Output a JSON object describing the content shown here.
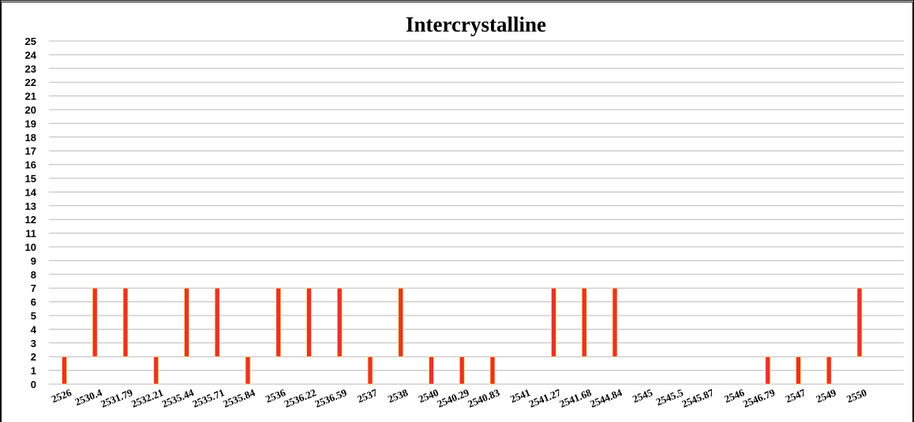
{
  "chart_data": {
    "type": "bar",
    "title": "Intercrystalline",
    "xlabel": "",
    "ylabel": "",
    "ylim": [
      0,
      25
    ],
    "yticks": [
      0,
      1,
      2,
      3,
      4,
      5,
      6,
      7,
      8,
      9,
      10,
      11,
      12,
      13,
      14,
      15,
      16,
      17,
      18,
      19,
      20,
      21,
      22,
      23,
      24,
      25
    ],
    "grid": true,
    "legend": "none",
    "bar_color": "#e8322a",
    "bar_edge_color": "#ffe27a",
    "categories": [
      "2526",
      "2530.4",
      "2531.79",
      "2532.21",
      "2535.44",
      "2535.71",
      "2535.84",
      "2536",
      "2536.22",
      "2536.59",
      "2537",
      "2538",
      "2540",
      "2540.29",
      "2540.83",
      "2541",
      "2541.27",
      "2541.68",
      "2544.84",
      "2545",
      "2545.5",
      "2545.87",
      "2546",
      "2546.79",
      "2547",
      "2549",
      "2550"
    ],
    "series": [
      {
        "bar_bottom": [
          0,
          2,
          2,
          0,
          2,
          2,
          0,
          2,
          2,
          2,
          0,
          2,
          0,
          0,
          0,
          null,
          2,
          2,
          2,
          null,
          null,
          null,
          null,
          0,
          0,
          0,
          2
        ],
        "bar_top": [
          2,
          7,
          7,
          2,
          7,
          7,
          2,
          7,
          7,
          7,
          2,
          7,
          2,
          2,
          2,
          null,
          7,
          7,
          7,
          null,
          null,
          null,
          null,
          2,
          2,
          2,
          7
        ]
      }
    ]
  }
}
